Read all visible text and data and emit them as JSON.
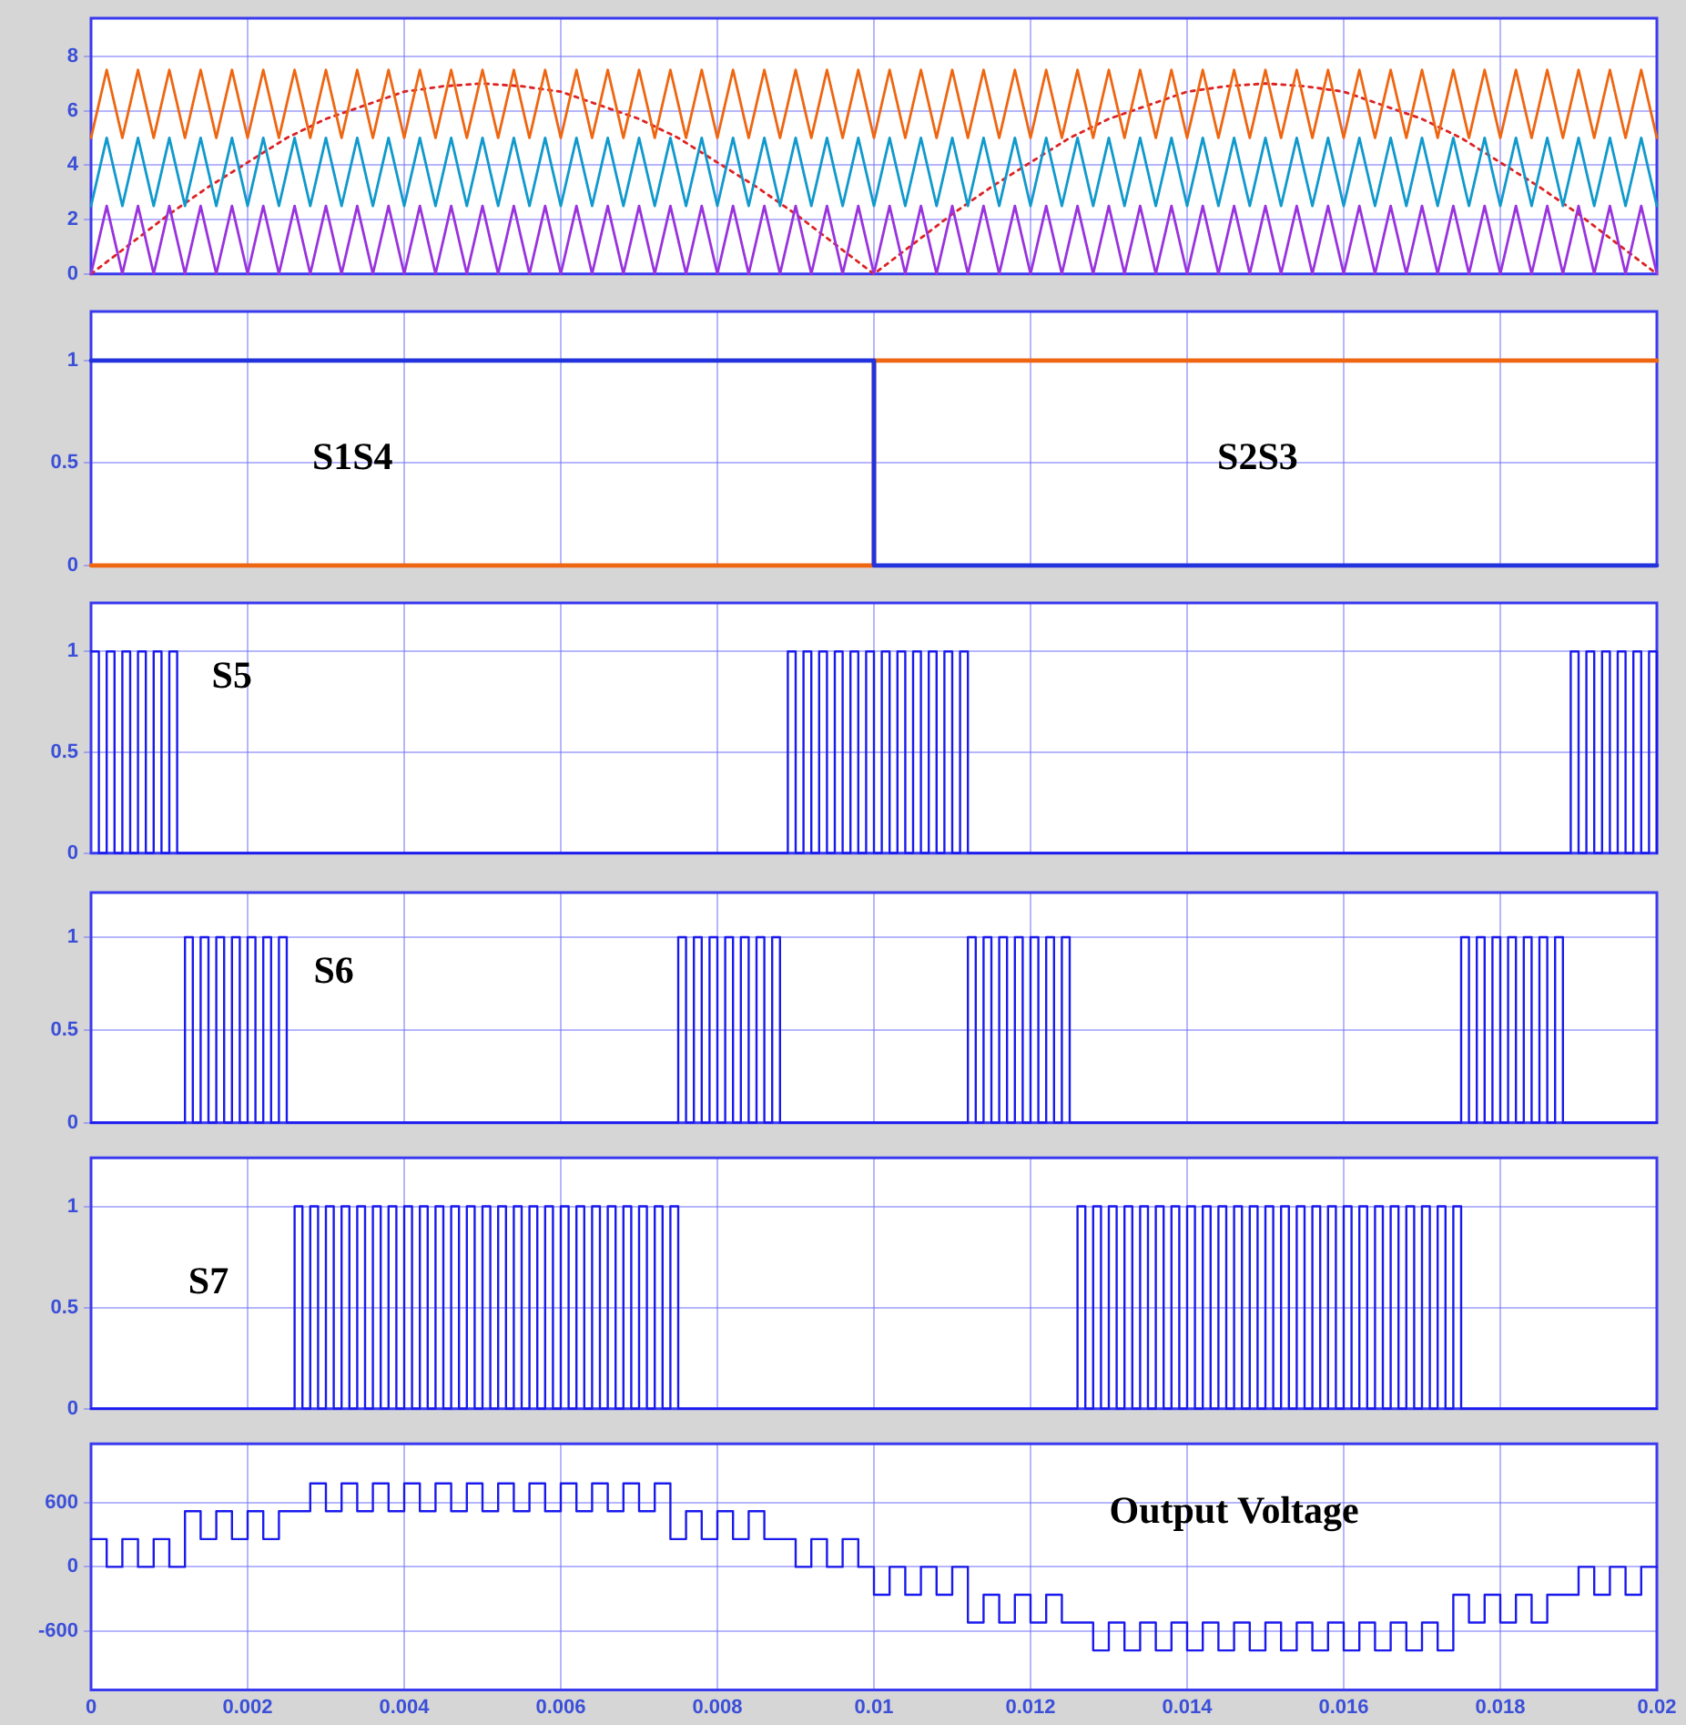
{
  "chart_data": [
    {
      "type": "line",
      "tick_labels": "y",
      "grid": true,
      "xlim": [
        0,
        0.02
      ],
      "xticks": [
        0,
        0.002,
        0.004,
        0.006,
        0.008,
        0.01,
        0.012,
        0.014,
        0.016,
        0.018,
        0.02
      ],
      "ylim": [
        0,
        9.4
      ],
      "yticks": [
        0,
        2,
        4,
        6,
        8
      ],
      "x": [
        0,
        0.0002,
        0.0004,
        0.0006,
        0.0008,
        0.001,
        0.0012,
        0.0014,
        0.0016,
        0.0018,
        0.002,
        0.0022,
        0.0024,
        0.0026,
        0.0028,
        0.003,
        0.0032,
        0.0034,
        0.0036,
        0.0038,
        0.004,
        0.0042,
        0.0044,
        0.0046,
        0.0048,
        0.005,
        0.0052,
        0.0054,
        0.0056,
        0.0058,
        0.006,
        0.0062,
        0.0064,
        0.0066,
        0.0068,
        0.007,
        0.0072,
        0.0074,
        0.0076,
        0.0078,
        0.008,
        0.0082,
        0.0084,
        0.0086,
        0.0088,
        0.009,
        0.0092,
        0.0094,
        0.0096,
        0.0098,
        0.01,
        0.0102,
        0.0104,
        0.0106,
        0.0108,
        0.011,
        0.0112,
        0.0114,
        0.0116,
        0.0118,
        0.012,
        0.0122,
        0.0124,
        0.0126,
        0.0128,
        0.013,
        0.0132,
        0.0134,
        0.0136,
        0.0138,
        0.014,
        0.0142,
        0.0144,
        0.0146,
        0.0148,
        0.015,
        0.0152,
        0.0154,
        0.0156,
        0.0158,
        0.016,
        0.0162,
        0.0164,
        0.0166,
        0.0168,
        0.017,
        0.0172,
        0.0174,
        0.0176,
        0.0178,
        0.018,
        0.0182,
        0.0184,
        0.0186,
        0.0188,
        0.019,
        0.0192,
        0.0194,
        0.0196,
        0.0198,
        0.02
      ],
      "series": [
        {
          "color": "#9933dd",
          "values": [
            0,
            2.5,
            0,
            2.5,
            0,
            2.5,
            0,
            2.5,
            0,
            2.5,
            0,
            2.5,
            0,
            2.5,
            0,
            2.5,
            0,
            2.5,
            0,
            2.5,
            0,
            2.5,
            0,
            2.5,
            0,
            2.5,
            0,
            2.5,
            0,
            2.5,
            0,
            2.5,
            0,
            2.5,
            0,
            2.5,
            0,
            2.5,
            0,
            2.5,
            0,
            2.5,
            0,
            2.5,
            0,
            2.5,
            0,
            2.5,
            0,
            2.5,
            0,
            2.5,
            0,
            2.5,
            0,
            2.5,
            0,
            2.5,
            0,
            2.5,
            0,
            2.5,
            0,
            2.5,
            0,
            2.5,
            0,
            2.5,
            0,
            2.5,
            0,
            2.5,
            0,
            2.5,
            0,
            2.5,
            0,
            2.5,
            0,
            2.5,
            0,
            2.5,
            0,
            2.5,
            0,
            2.5,
            0,
            2.5,
            0,
            2.5,
            0,
            2.5,
            0,
            2.5,
            0,
            2.5,
            0,
            2.5,
            0,
            2.5,
            0
          ]
        },
        {
          "color": "#1199cc",
          "values": [
            2.5,
            5,
            2.5,
            5,
            2.5,
            5,
            2.5,
            5,
            2.5,
            5,
            2.5,
            5,
            2.5,
            5,
            2.5,
            5,
            2.5,
            5,
            2.5,
            5,
            2.5,
            5,
            2.5,
            5,
            2.5,
            5,
            2.5,
            5,
            2.5,
            5,
            2.5,
            5,
            2.5,
            5,
            2.5,
            5,
            2.5,
            5,
            2.5,
            5,
            2.5,
            5,
            2.5,
            5,
            2.5,
            5,
            2.5,
            5,
            2.5,
            5,
            2.5,
            5,
            2.5,
            5,
            2.5,
            5,
            2.5,
            5,
            2.5,
            5,
            2.5,
            5,
            2.5,
            5,
            2.5,
            5,
            2.5,
            5,
            2.5,
            5,
            2.5,
            5,
            2.5,
            5,
            2.5,
            5,
            2.5,
            5,
            2.5,
            5,
            2.5,
            5,
            2.5,
            5,
            2.5,
            5,
            2.5,
            5,
            2.5,
            5,
            2.5,
            5,
            2.5,
            5,
            2.5,
            5,
            2.5,
            5,
            2.5,
            5,
            2.5
          ]
        },
        {
          "color": "#ee6611",
          "values": [
            5,
            7.5,
            5,
            7.5,
            5,
            7.5,
            5,
            7.5,
            5,
            7.5,
            5,
            7.5,
            5,
            7.5,
            5,
            7.5,
            5,
            7.5,
            5,
            7.5,
            5,
            7.5,
            5,
            7.5,
            5,
            7.5,
            5,
            7.5,
            5,
            7.5,
            5,
            7.5,
            5,
            7.5,
            5,
            7.5,
            5,
            7.5,
            5,
            7.5,
            5,
            7.5,
            5,
            7.5,
            5,
            7.5,
            5,
            7.5,
            5,
            7.5,
            5,
            7.5,
            5,
            7.5,
            5,
            7.5,
            5,
            7.5,
            5,
            7.5,
            5,
            7.5,
            5,
            7.5,
            5,
            7.5,
            5,
            7.5,
            5,
            7.5,
            5,
            7.5,
            5,
            7.5,
            5,
            7.5,
            5,
            7.5,
            5,
            7.5,
            5,
            7.5,
            5,
            7.5,
            5,
            7.5,
            5,
            7.5,
            5,
            7.5,
            5,
            7.5,
            5,
            7.5,
            5,
            7.5,
            5,
            7.5,
            5,
            7.5,
            5
          ]
        },
        {
          "color": "#dd2222",
          "line_style": "dotted",
          "x": [
            0,
            0.0005,
            0.001,
            0.0015,
            0.002,
            0.0025,
            0.003,
            0.0035,
            0.004,
            0.0045,
            0.005,
            0.0055,
            0.006,
            0.0065,
            0.007,
            0.0075,
            0.008,
            0.0085,
            0.009,
            0.0095,
            0.01,
            0.0105,
            0.011,
            0.0115,
            0.012,
            0.0125,
            0.013,
            0.0135,
            0.014,
            0.0145,
            0.015,
            0.0155,
            0.016,
            0.0165,
            0.017,
            0.0175,
            0.018,
            0.0185,
            0.019,
            0.0195,
            0.02
          ],
          "values": [
            0,
            1.1,
            2.2,
            3.2,
            4.1,
            5,
            5.7,
            6.2,
            6.7,
            6.9,
            7,
            6.9,
            6.7,
            6.2,
            5.7,
            5,
            4.1,
            3.2,
            2.2,
            1.1,
            0,
            1.1,
            2.2,
            3.2,
            4.1,
            5,
            5.7,
            6.2,
            6.7,
            6.9,
            7,
            6.9,
            6.7,
            6.2,
            5.7,
            5,
            4.1,
            3.2,
            2.2,
            1.1,
            0
          ]
        }
      ]
    },
    {
      "type": "step",
      "tick_labels": "y",
      "grid": true,
      "xlim": [
        0,
        0.02
      ],
      "xticks": [
        0,
        0.002,
        0.004,
        0.006,
        0.008,
        0.01,
        0.012,
        0.014,
        0.016,
        0.018,
        0.02
      ],
      "ylim": [
        0,
        1.24
      ],
      "yticks": [
        0,
        0.5,
        1
      ],
      "annotations": [
        "S1S4",
        "S2S3"
      ],
      "x": [
        0,
        0.01,
        0.02
      ],
      "series": [
        {
          "color": "#2233dd",
          "values": [
            1,
            0,
            0
          ]
        },
        {
          "color": "#ee6611",
          "values": [
            0,
            1,
            1
          ]
        }
      ]
    },
    {
      "type": "step",
      "tick_labels": "y",
      "grid": true,
      "xlim": [
        0,
        0.02
      ],
      "xticks": [
        0,
        0.002,
        0.004,
        0.006,
        0.008,
        0.01,
        0.012,
        0.014,
        0.016,
        0.018,
        0.02
      ],
      "ylim": [
        0,
        1.24
      ],
      "yticks": [
        0,
        0.5,
        1
      ],
      "annotations": [
        "S5"
      ],
      "series": [
        {
          "color": "#1a1aee",
          "x": [
            0,
            0.0001,
            0.0002,
            0.0003,
            0.0004,
            0.0005,
            0.0006,
            0.0007,
            0.0008,
            0.0009,
            0.001,
            0.0011,
            0.0089,
            0.009,
            0.0091,
            0.0092,
            0.0093,
            0.0094,
            0.0095,
            0.0096,
            0.0097,
            0.0098,
            0.0099,
            0.01,
            0.0101,
            0.0102,
            0.0103,
            0.0104,
            0.0105,
            0.0106,
            0.0107,
            0.0108,
            0.0109,
            0.011,
            0.0111,
            0.0112,
            0.0189,
            0.019,
            0.0191,
            0.0192,
            0.0193,
            0.0194,
            0.0195,
            0.0196,
            0.0197,
            0.0198,
            0.0199,
            0.02
          ],
          "values": [
            1,
            0,
            1,
            0,
            1,
            0,
            1,
            0,
            1,
            0,
            1,
            0,
            1,
            0,
            1,
            0,
            1,
            0,
            1,
            0,
            1,
            0,
            1,
            0,
            1,
            0,
            1,
            0,
            1,
            0,
            1,
            0,
            1,
            0,
            1,
            0,
            1,
            0,
            1,
            0,
            1,
            0,
            1,
            0,
            1,
            0,
            1,
            0
          ]
        }
      ]
    },
    {
      "type": "step",
      "tick_labels": "y",
      "grid": true,
      "xlim": [
        0,
        0.02
      ],
      "xticks": [
        0,
        0.002,
        0.004,
        0.006,
        0.008,
        0.01,
        0.012,
        0.014,
        0.016,
        0.018,
        0.02
      ],
      "ylim": [
        0,
        1.24
      ],
      "yticks": [
        0,
        0.5,
        1
      ],
      "annotations": [
        "S6"
      ],
      "series": [
        {
          "color": "#1a1aee",
          "x": [
            0,
            0.0012,
            0.0013,
            0.0014,
            0.0015,
            0.0016,
            0.0017,
            0.0018,
            0.0019,
            0.002,
            0.0021,
            0.0022,
            0.0023,
            0.0024,
            0.0025,
            0.0075,
            0.0076,
            0.0077,
            0.0078,
            0.0079,
            0.008,
            0.0081,
            0.0082,
            0.0083,
            0.0084,
            0.0085,
            0.0086,
            0.0087,
            0.0088,
            0.0112,
            0.0113,
            0.0114,
            0.0115,
            0.0116,
            0.0117,
            0.0118,
            0.0119,
            0.012,
            0.0121,
            0.0122,
            0.0123,
            0.0124,
            0.0125,
            0.0175,
            0.0176,
            0.0177,
            0.0178,
            0.0179,
            0.018,
            0.0181,
            0.0182,
            0.0183,
            0.0184,
            0.0185,
            0.0186,
            0.0187,
            0.0188,
            0.02
          ],
          "values": [
            0,
            1,
            0,
            1,
            0,
            1,
            0,
            1,
            0,
            1,
            0,
            1,
            0,
            1,
            0,
            1,
            0,
            1,
            0,
            1,
            0,
            1,
            0,
            1,
            0,
            1,
            0,
            1,
            0,
            1,
            0,
            1,
            0,
            1,
            0,
            1,
            0,
            1,
            0,
            1,
            0,
            1,
            0,
            1,
            0,
            1,
            0,
            1,
            0,
            1,
            0,
            1,
            0,
            1,
            0,
            1,
            0,
            0
          ]
        }
      ]
    },
    {
      "type": "step",
      "tick_labels": "y",
      "grid": true,
      "xlim": [
        0,
        0.02
      ],
      "xticks": [
        0,
        0.002,
        0.004,
        0.006,
        0.008,
        0.01,
        0.012,
        0.014,
        0.016,
        0.018,
        0.02
      ],
      "ylim": [
        0,
        1.24
      ],
      "yticks": [
        0,
        0.5,
        1
      ],
      "annotations": [
        "S7"
      ],
      "series": [
        {
          "color": "#1a1aee",
          "x": [
            0,
            0.0026,
            0.0027,
            0.0028,
            0.0029,
            0.003,
            0.0031,
            0.0032,
            0.0033,
            0.0034,
            0.0035,
            0.0036,
            0.0037,
            0.0038,
            0.0039,
            0.004,
            0.0041,
            0.0042,
            0.0043,
            0.0044,
            0.0045,
            0.0046,
            0.0047,
            0.0048,
            0.0049,
            0.005,
            0.0051,
            0.0052,
            0.0053,
            0.0054,
            0.0055,
            0.0056,
            0.0057,
            0.0058,
            0.0059,
            0.006,
            0.0061,
            0.0062,
            0.0063,
            0.0064,
            0.0065,
            0.0066,
            0.0067,
            0.0068,
            0.0069,
            0.007,
            0.0071,
            0.0072,
            0.0073,
            0.0074,
            0.0075,
            0.0126,
            0.0127,
            0.0128,
            0.0129,
            0.013,
            0.0131,
            0.0132,
            0.0133,
            0.0134,
            0.0135,
            0.0136,
            0.0137,
            0.0138,
            0.0139,
            0.014,
            0.0141,
            0.0142,
            0.0143,
            0.0144,
            0.0145,
            0.0146,
            0.0147,
            0.0148,
            0.0149,
            0.015,
            0.0151,
            0.0152,
            0.0153,
            0.0154,
            0.0155,
            0.0156,
            0.0157,
            0.0158,
            0.0159,
            0.016,
            0.0161,
            0.0162,
            0.0163,
            0.0164,
            0.0165,
            0.0166,
            0.0167,
            0.0168,
            0.0169,
            0.017,
            0.0171,
            0.0172,
            0.0173,
            0.0174,
            0.0175,
            0.02
          ],
          "values": [
            0,
            1,
            0,
            1,
            0,
            1,
            0,
            1,
            0,
            1,
            0,
            1,
            0,
            1,
            0,
            1,
            0,
            1,
            0,
            1,
            0,
            1,
            0,
            1,
            0,
            1,
            0,
            1,
            0,
            1,
            0,
            1,
            0,
            1,
            0,
            1,
            0,
            1,
            0,
            1,
            0,
            1,
            0,
            1,
            0,
            1,
            0,
            1,
            0,
            1,
            0,
            1,
            0,
            1,
            0,
            1,
            0,
            1,
            0,
            1,
            0,
            1,
            0,
            1,
            0,
            1,
            0,
            1,
            0,
            1,
            0,
            1,
            0,
            1,
            0,
            1,
            0,
            1,
            0,
            1,
            0,
            1,
            0,
            1,
            0,
            1,
            0,
            1,
            0,
            1,
            0,
            1,
            0,
            1,
            0,
            1,
            0,
            1,
            0,
            1,
            0,
            0
          ]
        }
      ]
    },
    {
      "type": "step",
      "grid": true,
      "xlim": [
        0,
        0.02
      ],
      "xticks": [
        0,
        0.002,
        0.004,
        0.006,
        0.008,
        0.01,
        0.012,
        0.014,
        0.016,
        0.018,
        0.02
      ],
      "ylim": [
        -1150,
        1150
      ],
      "yticks": [
        -600,
        0,
        600
      ],
      "annotations": [
        "Output Voltage"
      ],
      "x": [
        0,
        0.0002,
        0.0004,
        0.0006,
        0.0008,
        0.001,
        0.0012,
        0.0014,
        0.0016,
        0.0018,
        0.002,
        0.0022,
        0.0024,
        0.0026,
        0.0028,
        0.003,
        0.0032,
        0.0034,
        0.0036,
        0.0038,
        0.004,
        0.0042,
        0.0044,
        0.0046,
        0.0048,
        0.005,
        0.0052,
        0.0054,
        0.0056,
        0.0058,
        0.006,
        0.0062,
        0.0064,
        0.0066,
        0.0068,
        0.007,
        0.0072,
        0.0074,
        0.0076,
        0.0078,
        0.008,
        0.0082,
        0.0084,
        0.0086,
        0.0088,
        0.009,
        0.0092,
        0.0094,
        0.0096,
        0.0098,
        0.01,
        0.0102,
        0.0104,
        0.0106,
        0.0108,
        0.011,
        0.0112,
        0.0114,
        0.0116,
        0.0118,
        0.012,
        0.0122,
        0.0124,
        0.0126,
        0.0128,
        0.013,
        0.0132,
        0.0134,
        0.0136,
        0.0138,
        0.014,
        0.0142,
        0.0144,
        0.0146,
        0.0148,
        0.015,
        0.0152,
        0.0154,
        0.0156,
        0.0158,
        0.016,
        0.0162,
        0.0164,
        0.0166,
        0.0168,
        0.017,
        0.0172,
        0.0174,
        0.0176,
        0.0178,
        0.018,
        0.0182,
        0.0184,
        0.0186,
        0.0188,
        0.019,
        0.0192,
        0.0194,
        0.0196,
        0.0198,
        0.02
      ],
      "series": [
        {
          "color": "#1a1aee",
          "values": [
            260,
            0,
            260,
            0,
            260,
            0,
            520,
            260,
            520,
            260,
            520,
            260,
            520,
            520,
            780,
            520,
            780,
            520,
            780,
            520,
            780,
            520,
            780,
            520,
            780,
            520,
            780,
            520,
            780,
            520,
            780,
            520,
            780,
            520,
            780,
            520,
            780,
            260,
            520,
            260,
            520,
            260,
            520,
            260,
            260,
            0,
            260,
            0,
            260,
            0,
            -260,
            0,
            -260,
            0,
            -260,
            0,
            -520,
            -260,
            -520,
            -260,
            -520,
            -260,
            -520,
            -520,
            -780,
            -520,
            -780,
            -520,
            -780,
            -520,
            -780,
            -520,
            -780,
            -520,
            -780,
            -520,
            -780,
            -520,
            -780,
            -520,
            -780,
            -520,
            -780,
            -520,
            -780,
            -520,
            -780,
            -260,
            -520,
            -260,
            -520,
            -260,
            -520,
            -260,
            -260,
            0,
            -260,
            0,
            -260,
            0,
            0
          ]
        }
      ]
    }
  ]
}
